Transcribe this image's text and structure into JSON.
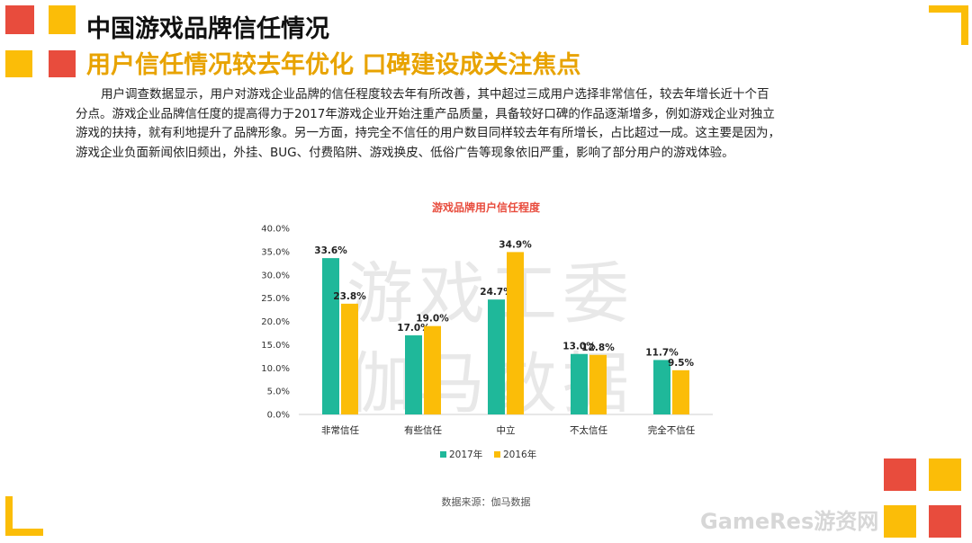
{
  "slide": {
    "title": "中国游戏品牌信任情况",
    "subtitle": "用户信任情况较去年优化 口碑建设成关注焦点",
    "paragraph_lines": [
      "用户调查数据显示，用户对游戏企业品牌的信任程度较去年有所改善，其中超过三成用户选择非常信任，较去年增长近十个百",
      "分点。游戏企业品牌信任度的提高得力于2017年游戏企业开始注重产品质量，具备较好口碑的作品逐渐增多，例如游戏企业对独立",
      "游戏的扶持，就有利地提升了品牌形象。另一方面，持完全不信任的用户数目同样较去年有所增长，占比超过一成。这主要是因为，",
      "游戏企业负面新闻依旧频出，外挂、BUG、付费陷阱、游戏换皮、低俗广告等现象依旧严重，影响了部分用户的游戏体验。"
    ],
    "source": "数据来源：伽马数据",
    "watermark_lines": [
      "游戏工委",
      "伽马数据"
    ],
    "brand_watermark": "GameRes游资网"
  },
  "colors": {
    "s2017": "#1fb89a",
    "s2016": "#fbbd08",
    "accent_red": "#e84c3d",
    "accent_yellow": "#fbbd08"
  },
  "chart_data": {
    "type": "bar",
    "title": "游戏品牌用户信任程度",
    "categories": [
      "非常信任",
      "有些信任",
      "中立",
      "不太信任",
      "完全不信任"
    ],
    "series": [
      {
        "name": "2017年",
        "values": [
          33.6,
          17.0,
          24.7,
          13.0,
          11.7
        ]
      },
      {
        "name": "2016年",
        "values": [
          23.8,
          19.0,
          34.9,
          12.8,
          9.5
        ]
      }
    ],
    "ylim": [
      0,
      40
    ],
    "ytick_step": 5,
    "ytick_labels": [
      "0.0%",
      "5.0%",
      "10.0%",
      "15.0%",
      "20.0%",
      "25.0%",
      "30.0%",
      "35.0%",
      "40.0%"
    ],
    "value_format": "percent-1dp",
    "legend": "bottom",
    "grid": false
  }
}
